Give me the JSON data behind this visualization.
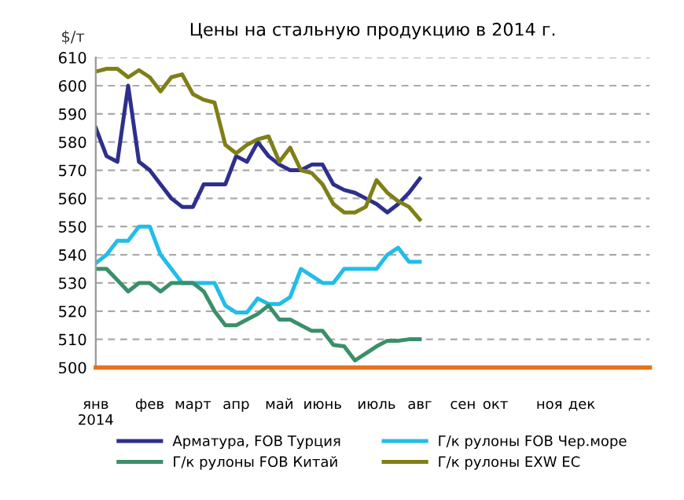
{
  "chart_data": {
    "type": "line",
    "title": "Цены на стальную продукцию в 2014 г.",
    "ylabel": "$/т",
    "categories": [
      "янв\n2014",
      null,
      null,
      null,
      null,
      "фев",
      null,
      null,
      null,
      "март",
      null,
      null,
      null,
      "апр",
      null,
      null,
      null,
      "май",
      null,
      null,
      null,
      "июнь",
      null,
      null,
      null,
      null,
      "июль",
      null,
      null,
      null,
      "авг",
      null,
      null,
      null,
      "сен",
      null,
      null,
      "окт",
      null,
      null,
      null,
      null,
      "ноя",
      null,
      null,
      "дек",
      null,
      null,
      null,
      null,
      null,
      null
    ],
    "ylim": [
      500,
      610
    ],
    "yticks": [
      500,
      510,
      520,
      530,
      540,
      550,
      560,
      570,
      580,
      590,
      600,
      610
    ],
    "grid": "y",
    "legend": "bottom",
    "marker": "none",
    "line_style": "solid",
    "series": [
      {
        "name": "Арматура, FOB Турция",
        "color": "#2e2f8c",
        "values": [
          585,
          575,
          573,
          600,
          573,
          570,
          565,
          560,
          557,
          557,
          565,
          565,
          565,
          575,
          573,
          580,
          575,
          572,
          570,
          570,
          572,
          572,
          565,
          563,
          562,
          560,
          558,
          555,
          558,
          562,
          567,
          null,
          null,
          null,
          null,
          null,
          null,
          null,
          null,
          null,
          null,
          null,
          null,
          null,
          null,
          null,
          null,
          null,
          null,
          null,
          null,
          null
        ]
      },
      {
        "name": "Г/к рулоны FOB Чер.море",
        "color": "#22bde8",
        "values": [
          537,
          540,
          545,
          545,
          550,
          550,
          540,
          535,
          530,
          530,
          530,
          530,
          522,
          519.5,
          519.5,
          524.5,
          522.5,
          522.5,
          525,
          535,
          532.5,
          530,
          530,
          535,
          535,
          535,
          535,
          540,
          542.5,
          537.5,
          537.5,
          null,
          null,
          null,
          null,
          null,
          null,
          null,
          null,
          null,
          null,
          null,
          null,
          null,
          null,
          null,
          null,
          null,
          null,
          null,
          null,
          null
        ]
      },
      {
        "name": "Г/к рулоны FOB Китай",
        "color": "#3a8f6a",
        "values": [
          535,
          535,
          531,
          527,
          530,
          530,
          527,
          530,
          530,
          530,
          527,
          520,
          515,
          515,
          517,
          519,
          522,
          517,
          517,
          515,
          513,
          513,
          508,
          507.5,
          502.5,
          505,
          507.5,
          509.5,
          509.5,
          510,
          510,
          null,
          null,
          null,
          null,
          null,
          null,
          null,
          null,
          null,
          null,
          null,
          null,
          null,
          null,
          null,
          null,
          null,
          null,
          null,
          null,
          null
        ]
      },
      {
        "name": "Г/к рулоны EXW EC",
        "color": "#7f7f17",
        "values": [
          605,
          606,
          606,
          603,
          605.5,
          603,
          598,
          603,
          604,
          597,
          595,
          594,
          579,
          576,
          579,
          581,
          582,
          573,
          578,
          570,
          569,
          565,
          558,
          555,
          555,
          557,
          566.5,
          562,
          559,
          557,
          552.5,
          null,
          null,
          null,
          null,
          null,
          null,
          null,
          null,
          null,
          null,
          null,
          null,
          null,
          null,
          null,
          null,
          null,
          null,
          null,
          null,
          null
        ]
      }
    ]
  }
}
